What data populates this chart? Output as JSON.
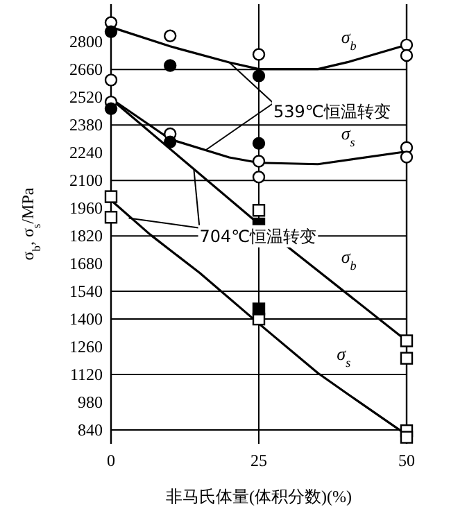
{
  "chart_data": {
    "type": "line",
    "xlabel": "非马氏体量(体积分数)(%)",
    "ylabel": "σ$_{b}$, σ$_{s}$/MPa",
    "xlim": [
      0,
      50
    ],
    "xticks": [
      0,
      25,
      50
    ],
    "ylim": [
      770,
      2990
    ],
    "yticks": [
      840,
      980,
      1120,
      1260,
      1400,
      1540,
      1680,
      1820,
      1960,
      2100,
      2240,
      2380,
      2520,
      2660,
      2800
    ],
    "series": [
      {
        "name": "σ$_{b}$",
        "color": "#000000",
        "x": [
          0,
          10,
          20,
          25,
          35,
          40,
          50
        ],
        "values": [
          2874,
          2777,
          2696,
          2662,
          2662,
          2697,
          2784
        ]
      },
      {
        "name": "σ$_{s}$",
        "color": "#000000",
        "x": [
          0,
          10,
          20,
          25,
          35,
          50
        ],
        "values": [
          2513,
          2308,
          2216,
          2189,
          2182,
          2246
        ]
      },
      {
        "name": "σ$_{b}$",
        "color": "#000000",
        "x": [
          0,
          25,
          50
        ],
        "values": [
          2511,
          1880,
          1290
        ]
      },
      {
        "name": "σ$_{s}$",
        "color": "#000000",
        "x": [
          0,
          6.6,
          15,
          25,
          35,
          40,
          49
        ],
        "values": [
          2000,
          1827,
          1633,
          1377,
          1127,
          1022,
          836
        ]
      },
      {
        "type": "scatter",
        "color": "#ffffff",
        "marker": "circle",
        "x": [
          0,
          0,
          0,
          10,
          10,
          25,
          25,
          25,
          50,
          50,
          50,
          50
        ],
        "values": [
          2897,
          2607,
          2496,
          2830,
          2335,
          2736,
          2197,
          2117,
          2784,
          2731,
          2266,
          2218
        ]
      },
      {
        "type": "scatter",
        "color": "#000000",
        "marker": "circle",
        "x": [
          0,
          0,
          10,
          10,
          25,
          25
        ],
        "values": [
          2851,
          2462,
          2680,
          2294,
          2628,
          2287
        ]
      },
      {
        "type": "scatter",
        "color": "#ffffff",
        "marker": "square",
        "x": [
          0,
          0,
          25,
          25,
          50,
          50,
          50,
          50
        ],
        "values": [
          2018,
          1914,
          1949,
          1400,
          1290,
          1202,
          836,
          803
        ]
      },
      {
        "type": "scatter",
        "color": "#000000",
        "marker": "square",
        "x": [
          25,
          25
        ],
        "values": [
          1880,
          1451
        ]
      }
    ],
    "ref_lines": [
      {
        "axis": "y",
        "value": 2660
      },
      {
        "axis": "y",
        "value": 2380
      },
      {
        "axis": "y",
        "value": 2100
      },
      {
        "axis": "y",
        "value": 1820
      },
      {
        "axis": "y",
        "value": 1540
      },
      {
        "axis": "y",
        "value": 1400
      },
      {
        "axis": "y",
        "value": 1120
      },
      {
        "axis": "y",
        "value": 840
      },
      {
        "axis": "x",
        "value": 25
      }
    ],
    "annotations": [
      {
        "text": "539℃恒温转变",
        "x": 20,
        "y": 2696
      },
      {
        "text": "704℃恒温转变",
        "x": 14,
        "y": 2160
      }
    ]
  }
}
